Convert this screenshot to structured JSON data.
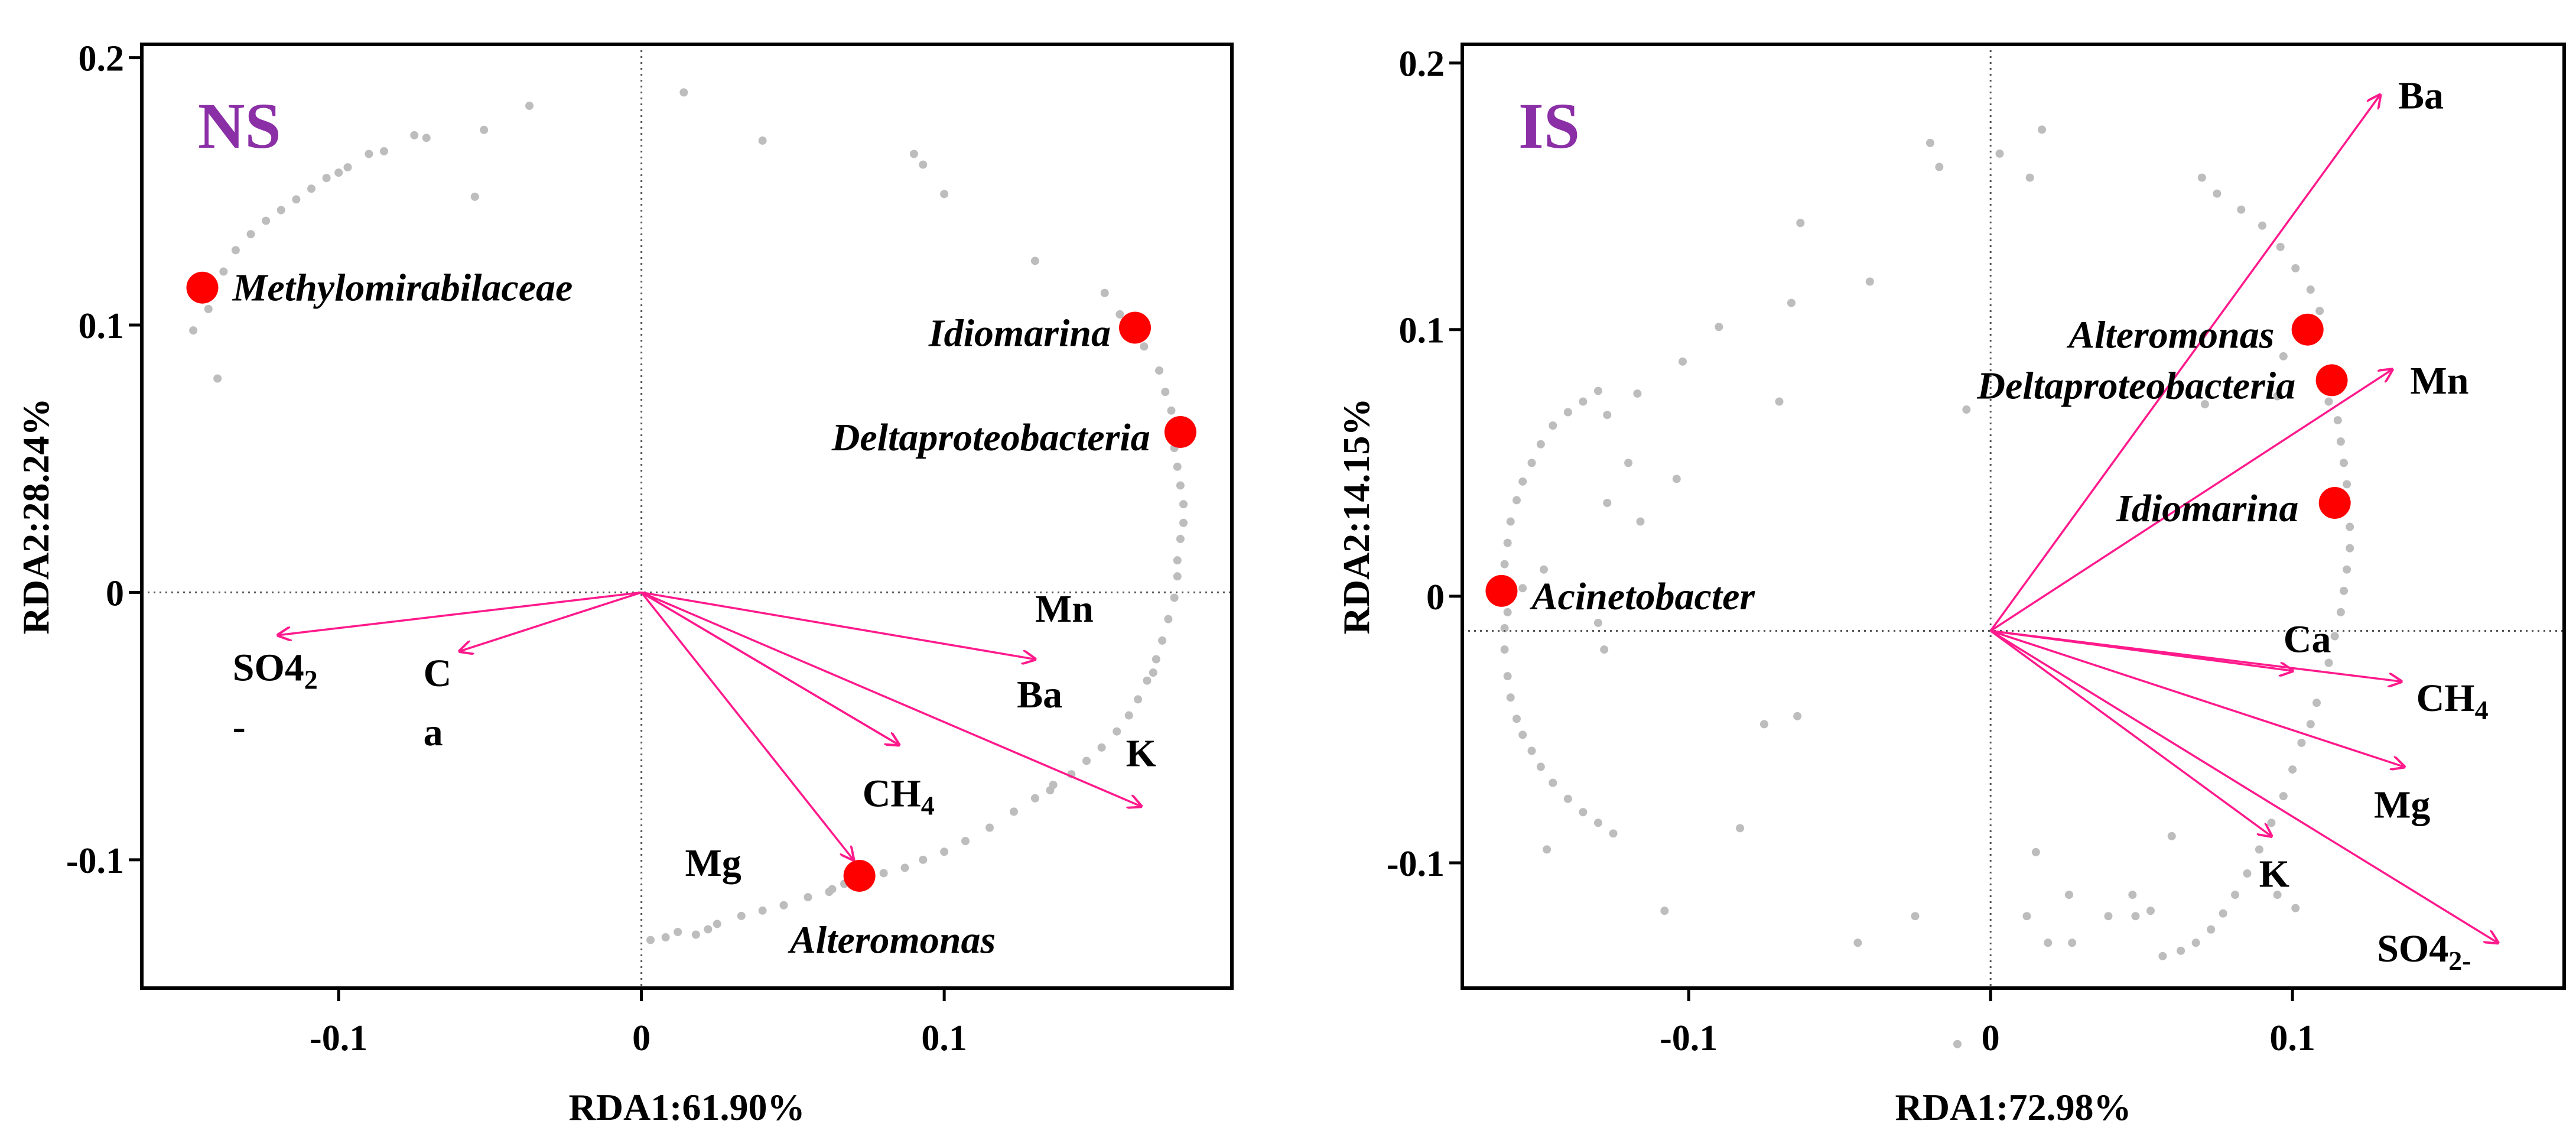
{
  "chart_data": [
    {
      "type": "scatter",
      "panel": "NS",
      "title": "NS",
      "xlabel": "RDA1:61.90%",
      "ylabel": "RDA2:28.24%",
      "xlim": [
        -0.165,
        0.195
      ],
      "ylim": [
        -0.148,
        0.205
      ],
      "xticks": [
        {
          "v": -0.1,
          "label": "-0.1"
        },
        {
          "v": 0,
          "label": "0"
        },
        {
          "v": 0.1,
          "label": "0.1"
        }
      ],
      "yticks": [
        {
          "v": 0.2,
          "label": "0.2"
        },
        {
          "v": 0.1,
          "label": "0.1"
        },
        {
          "v": 0,
          "label": "0"
        },
        {
          "v": -0.1,
          "label": "-0.1"
        }
      ],
      "origin": [
        0,
        0
      ],
      "taxa": [
        {
          "name": "Methylomirabilaceae",
          "x": -0.145,
          "y": 0.114,
          "anchor": "start",
          "dx": 0.01,
          "dy": 0
        },
        {
          "name": "Idiomarina",
          "x": 0.163,
          "y": 0.099,
          "anchor": "end",
          "dx": -0.008,
          "dy": -0.002
        },
        {
          "name": "Deltaproteobacteria",
          "x": 0.178,
          "y": 0.06,
          "anchor": "end",
          "dx": -0.01,
          "dy": -0.002
        },
        {
          "name": "Alteromonas",
          "x": 0.072,
          "y": -0.106,
          "anchor": "start",
          "dx": -0.023,
          "dy": -0.024
        }
      ],
      "vectors": [
        {
          "name": "SO4",
          "sub": "2",
          "label_line2": "-",
          "x": -0.12,
          "y": -0.016,
          "lx": -0.135,
          "ly": -0.033,
          "anchor": "start"
        },
        {
          "name": "C",
          "label_line2": "a",
          "x": -0.06,
          "y": -0.022,
          "lx": -0.072,
          "ly": -0.035,
          "anchor": "start"
        },
        {
          "name": "Mn",
          "x": 0.13,
          "y": -0.025,
          "lx": 0.13,
          "ly": -0.011,
          "anchor": "start"
        },
        {
          "name": "Ba",
          "x": 0.085,
          "y": -0.057,
          "lx": 0.124,
          "ly": -0.043,
          "anchor": "start"
        },
        {
          "name": "K",
          "x": 0.165,
          "y": -0.08,
          "lx": 0.16,
          "ly": -0.065,
          "anchor": "start"
        },
        {
          "name": "CH",
          "sub": "4",
          "x": 0.085,
          "y": -0.057,
          "lx": 0.073,
          "ly": -0.08,
          "anchor": "start"
        },
        {
          "name": "Mg",
          "x": 0.07,
          "y": -0.1,
          "lx": 0.033,
          "ly": -0.106,
          "anchor": "end"
        }
      ],
      "background_points": [
        [
          -0.148,
          0.098
        ],
        [
          -0.143,
          0.106
        ],
        [
          -0.138,
          0.12
        ],
        [
          -0.134,
          0.128
        ],
        [
          -0.129,
          0.134
        ],
        [
          -0.124,
          0.139
        ],
        [
          -0.119,
          0.143
        ],
        [
          -0.114,
          0.147
        ],
        [
          -0.109,
          0.151
        ],
        [
          -0.104,
          0.155
        ],
        [
          -0.1,
          0.157
        ],
        [
          -0.097,
          0.159
        ],
        [
          -0.14,
          0.08
        ],
        [
          -0.09,
          0.164
        ],
        [
          -0.085,
          0.165
        ],
        [
          -0.075,
          0.171
        ],
        [
          -0.071,
          0.17
        ],
        [
          -0.055,
          0.148
        ],
        [
          -0.052,
          0.173
        ],
        [
          -0.037,
          0.182
        ],
        [
          0.014,
          0.187
        ],
        [
          0.04,
          0.169
        ],
        [
          0.09,
          0.164
        ],
        [
          0.093,
          0.16
        ],
        [
          0.1,
          0.149
        ],
        [
          0.13,
          0.124
        ],
        [
          0.153,
          0.112
        ],
        [
          0.158,
          0.104
        ],
        [
          0.166,
          0.092
        ],
        [
          0.171,
          0.083
        ],
        [
          0.173,
          0.075
        ],
        [
          0.175,
          0.068
        ],
        [
          0.176,
          0.054
        ],
        [
          0.177,
          0.047
        ],
        [
          0.178,
          0.04
        ],
        [
          0.179,
          0.033
        ],
        [
          0.179,
          0.026
        ],
        [
          0.178,
          0.02
        ],
        [
          0.177,
          0.012
        ],
        [
          0.177,
          0.006
        ],
        [
          0.176,
          -0.002
        ],
        [
          0.174,
          -0.01
        ],
        [
          0.172,
          -0.018
        ],
        [
          0.17,
          -0.025
        ],
        [
          0.167,
          -0.033
        ],
        [
          0.164,
          -0.04
        ],
        [
          0.161,
          -0.046
        ],
        [
          0.157,
          -0.052
        ],
        [
          0.152,
          -0.058
        ],
        [
          0.147,
          -0.063
        ],
        [
          0.142,
          -0.068
        ],
        [
          0.136,
          -0.072
        ],
        [
          0.13,
          -0.077
        ],
        [
          0.123,
          -0.082
        ],
        [
          0.115,
          -0.088
        ],
        [
          0.107,
          -0.093
        ],
        [
          0.1,
          -0.097
        ],
        [
          0.093,
          -0.1
        ],
        [
          0.087,
          -0.103
        ],
        [
          0.08,
          -0.105
        ],
        [
          0.063,
          -0.111
        ],
        [
          0.055,
          -0.114
        ],
        [
          0.047,
          -0.117
        ],
        [
          0.04,
          -0.119
        ],
        [
          0.033,
          -0.121
        ],
        [
          0.025,
          -0.124
        ],
        [
          0.018,
          -0.128
        ],
        [
          0.022,
          -0.126
        ],
        [
          0.003,
          -0.13
        ],
        [
          0.012,
          -0.127
        ],
        [
          0.008,
          -0.129
        ],
        [
          0.062,
          -0.112
        ],
        [
          0.067,
          -0.109
        ],
        [
          0.135,
          -0.074
        ],
        [
          0.169,
          -0.03
        ]
      ]
    },
    {
      "type": "scatter",
      "panel": "IS",
      "title": "IS",
      "xlabel": "RDA1:72.98%",
      "ylabel": "RDA2:14.15%",
      "xlim": [
        -0.175,
        0.19
      ],
      "ylim": [
        -0.147,
        0.207
      ],
      "xticks": [
        {
          "v": -0.1,
          "label": "-0.1"
        },
        {
          "v": 0,
          "label": "0"
        },
        {
          "v": 0.1,
          "label": "0.1"
        }
      ],
      "yticks": [
        {
          "v": 0.2,
          "label": "0.2"
        },
        {
          "v": 0.1,
          "label": "0.1"
        },
        {
          "v": 0,
          "label": "0"
        },
        {
          "v": -0.1,
          "label": "-0.1"
        }
      ],
      "origin": [
        0,
        -0.013
      ],
      "taxa": [
        {
          "name": "Alteromonas",
          "x": 0.105,
          "y": 0.1,
          "anchor": "end",
          "dx": -0.011,
          "dy": -0.002
        },
        {
          "name": "Deltaproteobacteria",
          "x": 0.113,
          "y": 0.081,
          "anchor": "end",
          "dx": -0.012,
          "dy": -0.002
        },
        {
          "name": "Idiomarina",
          "x": 0.114,
          "y": 0.035,
          "anchor": "end",
          "dx": -0.012,
          "dy": -0.002
        },
        {
          "name": "Acinetobacter",
          "x": -0.162,
          "y": 0.002,
          "anchor": "start",
          "dx": 0.01,
          "dy": -0.002
        }
      ],
      "vectors": [
        {
          "name": "Ba",
          "x": 0.129,
          "y": 0.188,
          "lx": 0.135,
          "ly": 0.183,
          "anchor": "start"
        },
        {
          "name": "Mn",
          "x": 0.133,
          "y": 0.085,
          "lx": 0.139,
          "ly": 0.076,
          "anchor": "start"
        },
        {
          "name": "Ca",
          "x": 0.1,
          "y": -0.028,
          "lx": 0.097,
          "ly": -0.021,
          "anchor": "start"
        },
        {
          "name": "CH",
          "sub": "4",
          "x": 0.136,
          "y": -0.032,
          "lx": 0.141,
          "ly": -0.043,
          "anchor": "start"
        },
        {
          "name": "Mg",
          "x": 0.137,
          "y": -0.064,
          "lx": 0.127,
          "ly": -0.083,
          "anchor": "start"
        },
        {
          "name": "K",
          "x": 0.093,
          "y": -0.09,
          "lx": 0.099,
          "ly": -0.109,
          "anchor": "end"
        },
        {
          "name": "SO4",
          "sub": "2-",
          "x": 0.168,
          "y": -0.13,
          "lx": 0.128,
          "ly": -0.137,
          "anchor": "start"
        }
      ],
      "background_points": [
        [
          -0.16,
          -0.006
        ],
        [
          -0.161,
          -0.012
        ],
        [
          -0.161,
          -0.02
        ],
        [
          -0.16,
          -0.03
        ],
        [
          -0.159,
          -0.038
        ],
        [
          -0.157,
          -0.046
        ],
        [
          -0.155,
          -0.052
        ],
        [
          -0.152,
          -0.058
        ],
        [
          -0.149,
          -0.064
        ],
        [
          -0.145,
          -0.07
        ],
        [
          -0.14,
          -0.076
        ],
        [
          -0.135,
          -0.081
        ],
        [
          -0.13,
          -0.085
        ],
        [
          -0.125,
          -0.089
        ],
        [
          -0.161,
          0.012
        ],
        [
          -0.16,
          0.02
        ],
        [
          -0.159,
          0.028
        ],
        [
          -0.157,
          0.036
        ],
        [
          -0.155,
          0.043
        ],
        [
          -0.152,
          0.05
        ],
        [
          -0.149,
          0.057
        ],
        [
          -0.145,
          0.064
        ],
        [
          -0.14,
          0.069
        ],
        [
          -0.135,
          0.073
        ],
        [
          -0.13,
          0.077
        ],
        [
          -0.127,
          0.068
        ],
        [
          -0.117,
          0.076
        ],
        [
          -0.127,
          0.035
        ],
        [
          -0.12,
          0.05
        ],
        [
          -0.102,
          0.088
        ],
        [
          -0.066,
          0.11
        ],
        [
          -0.063,
          0.14
        ],
        [
          -0.07,
          0.073
        ],
        [
          -0.104,
          0.044
        ],
        [
          -0.116,
          0.028
        ],
        [
          -0.128,
          -0.02
        ],
        [
          -0.147,
          -0.095
        ],
        [
          -0.108,
          -0.118
        ],
        [
          -0.083,
          -0.087
        ],
        [
          -0.044,
          -0.13
        ],
        [
          -0.011,
          -0.168
        ],
        [
          -0.025,
          -0.12
        ],
        [
          -0.075,
          -0.048
        ],
        [
          -0.02,
          0.17
        ],
        [
          0.003,
          0.166
        ],
        [
          0.017,
          0.175
        ],
        [
          -0.017,
          0.161
        ],
        [
          -0.008,
          0.07
        ],
        [
          -0.04,
          0.118
        ],
        [
          0.07,
          0.157
        ],
        [
          0.075,
          0.151
        ],
        [
          0.083,
          0.145
        ],
        [
          0.09,
          0.139
        ],
        [
          0.096,
          0.131
        ],
        [
          0.101,
          0.123
        ],
        [
          0.106,
          0.115
        ],
        [
          0.109,
          0.107
        ],
        [
          0.112,
          0.073
        ],
        [
          0.115,
          0.066
        ],
        [
          0.116,
          0.058
        ],
        [
          0.117,
          0.05
        ],
        [
          0.118,
          0.042
        ],
        [
          0.119,
          0.026
        ],
        [
          0.119,
          0.018
        ],
        [
          0.118,
          0.01
        ],
        [
          0.117,
          0.002
        ],
        [
          0.116,
          -0.006
        ],
        [
          0.114,
          -0.015
        ],
        [
          0.112,
          -0.025
        ],
        [
          0.108,
          -0.04
        ],
        [
          0.106,
          -0.048
        ],
        [
          0.103,
          -0.055
        ],
        [
          0.1,
          -0.065
        ],
        [
          0.097,
          -0.075
        ],
        [
          0.093,
          -0.085
        ],
        [
          0.089,
          -0.095
        ],
        [
          0.085,
          -0.104
        ],
        [
          0.081,
          -0.112
        ],
        [
          0.077,
          -0.119
        ],
        [
          0.073,
          -0.125
        ],
        [
          0.068,
          -0.13
        ],
        [
          0.063,
          -0.133
        ],
        [
          0.057,
          -0.135
        ],
        [
          0.048,
          -0.12
        ],
        [
          0.053,
          -0.118
        ],
        [
          0.047,
          -0.112
        ],
        [
          0.015,
          -0.096
        ],
        [
          0.026,
          -0.112
        ],
        [
          0.012,
          -0.12
        ],
        [
          0.039,
          -0.12
        ],
        [
          0.06,
          -0.09
        ],
        [
          0.095,
          -0.112
        ],
        [
          0.101,
          -0.117
        ],
        [
          0.019,
          -0.13
        ],
        [
          0.027,
          -0.13
        ],
        [
          0.097,
          0.09
        ],
        [
          0.095,
          0.075
        ],
        [
          0.071,
          0.072
        ],
        [
          0.013,
          0.157
        ],
        [
          -0.09,
          0.101
        ],
        [
          -0.064,
          -0.045
        ],
        [
          -0.13,
          -0.01
        ],
        [
          -0.148,
          0.01
        ],
        [
          -0.155,
          0.003
        ]
      ]
    }
  ],
  "colors": {
    "marker": "#ff0000",
    "vector": "#ff1a8c",
    "background_point": "#bdbdbd",
    "panel_label": "#8b2fa6",
    "axis": "#000000"
  }
}
